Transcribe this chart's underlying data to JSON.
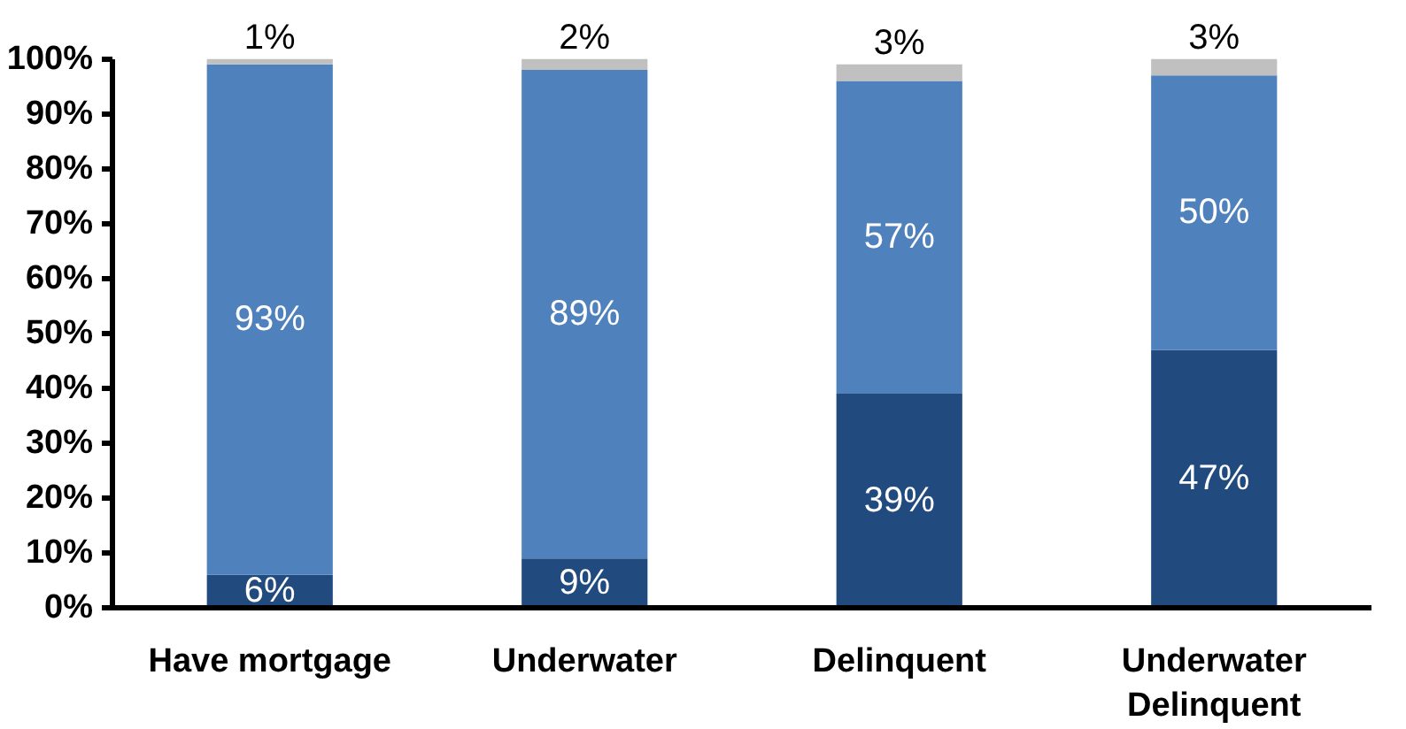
{
  "chart_data": {
    "type": "bar",
    "stacked": true,
    "categories": [
      "Have mortgage",
      "Underwater",
      "Delinquent",
      "Underwater\nDelinquent"
    ],
    "series": [
      {
        "color": "#214a7e",
        "values": [
          6,
          9,
          39,
          47
        ],
        "value_labels": [
          "6%",
          "9%",
          "39%",
          "47%"
        ]
      },
      {
        "color": "#4f81bd",
        "values": [
          93,
          89,
          57,
          50
        ],
        "value_labels": [
          "93%",
          "89%",
          "57%",
          "50%"
        ]
      },
      {
        "color": "#c0c0c0",
        "values": [
          1,
          2,
          3,
          3
        ],
        "value_labels": [
          "1%",
          "2%",
          "3%",
          "3%"
        ]
      }
    ],
    "ylim": [
      0,
      100
    ],
    "yticks": [
      {
        "value": 0,
        "label": "0%"
      },
      {
        "value": 10,
        "label": "10%"
      },
      {
        "value": 20,
        "label": "20%"
      },
      {
        "value": 30,
        "label": "30%"
      },
      {
        "value": 40,
        "label": "40%"
      },
      {
        "value": 50,
        "label": "50%"
      },
      {
        "value": 60,
        "label": "60%"
      },
      {
        "value": 70,
        "label": "70%"
      },
      {
        "value": 80,
        "label": "80%"
      },
      {
        "value": 90,
        "label": "90%"
      },
      {
        "value": 100,
        "label": "100%"
      }
    ],
    "grid": false
  }
}
